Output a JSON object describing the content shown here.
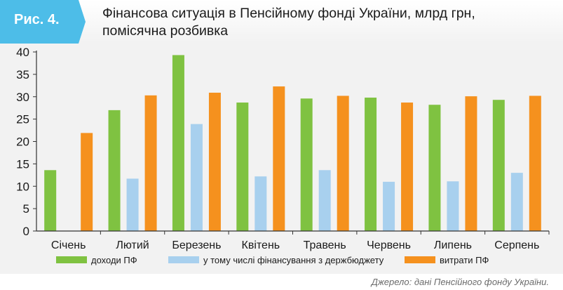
{
  "figure_label": "Рис. 4.",
  "source_note": "Джерело: дані Пенсійного фонду України.",
  "colors": {
    "income": "#7fc241",
    "budget_financing": "#a8d0ee",
    "expenses": "#f5911e",
    "badge": "#4dbde8"
  },
  "chart_data": {
    "type": "bar",
    "title": "Фінансова ситуація в Пенсійному фонді України, млрд грн,\nпомісячна розбивка",
    "xlabel": "",
    "ylabel": "",
    "ylim": [
      0,
      40
    ],
    "yticks": [
      0,
      5,
      10,
      15,
      20,
      25,
      30,
      35,
      40
    ],
    "grid": false,
    "legend_position": "bottom",
    "categories": [
      "Січень",
      "Лютий",
      "Березень",
      "Квітень",
      "Травень",
      "Червень",
      "Липень",
      "Серпень"
    ],
    "series": [
      {
        "name": "доходи ПФ",
        "color": "#7fc241",
        "values": [
          13.6,
          27.0,
          39.3,
          28.7,
          29.6,
          29.8,
          28.2,
          29.3
        ]
      },
      {
        "name": "у тому числі фінансування з держбюджету",
        "color": "#a8d0ee",
        "values": [
          null,
          11.7,
          23.9,
          12.2,
          13.6,
          11.0,
          11.1,
          13.0
        ]
      },
      {
        "name": "витрати ПФ",
        "color": "#f5911e",
        "values": [
          21.9,
          30.3,
          30.9,
          32.3,
          30.2,
          28.7,
          30.1,
          30.2
        ]
      }
    ]
  }
}
